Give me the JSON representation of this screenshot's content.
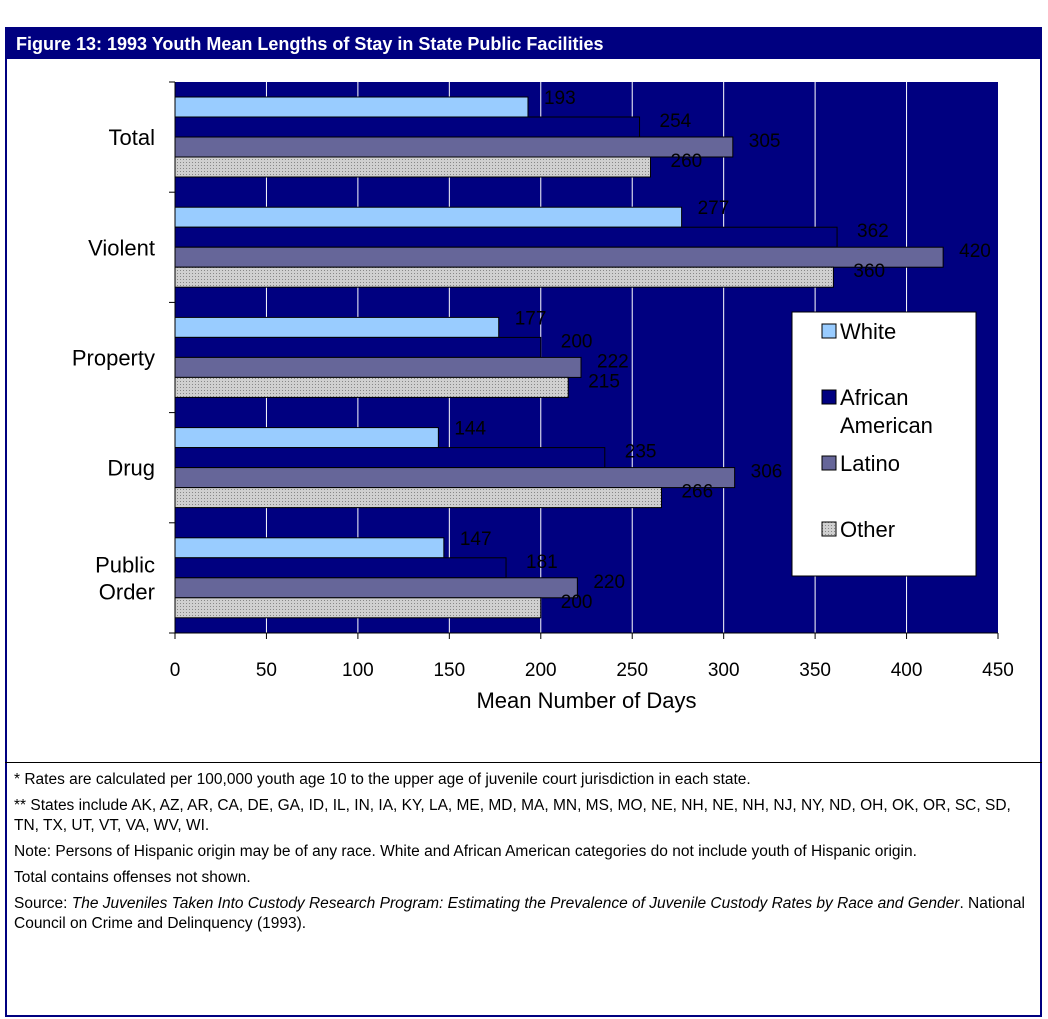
{
  "figure_title": "Figure 13:  1993 Youth Mean Lengths of Stay in State Public Facilities",
  "colors": {
    "header_bg": "#000080",
    "plot_bg": "#000080",
    "white_series": "#99ccff",
    "african_american_series": "#000080",
    "latino_series": "#666699",
    "other_series": "#c0c0c0"
  },
  "chart_data": {
    "type": "bar",
    "orientation": "horizontal",
    "categories": [
      "Total",
      "Violent",
      "Property",
      "Drug",
      "Public Order"
    ],
    "category_lines": [
      [
        "Total"
      ],
      [
        "Violent"
      ],
      [
        "Property"
      ],
      [
        "Drug"
      ],
      [
        "Public",
        "Order"
      ]
    ],
    "series": [
      {
        "name": "White",
        "legend_lines": [
          "White"
        ],
        "values": [
          193,
          277,
          177,
          144,
          147
        ]
      },
      {
        "name": "African American",
        "legend_lines": [
          "African",
          "American"
        ],
        "values": [
          254,
          362,
          200,
          235,
          181
        ]
      },
      {
        "name": "Latino",
        "legend_lines": [
          "Latino"
        ],
        "values": [
          305,
          420,
          222,
          306,
          220
        ]
      },
      {
        "name": "Other",
        "legend_lines": [
          "Other"
        ],
        "values": [
          260,
          360,
          215,
          266,
          200
        ]
      }
    ],
    "xlabel": "Mean Number of Days",
    "ylabel": "",
    "xlim": [
      0,
      450
    ],
    "x_ticks": [
      0,
      50,
      100,
      150,
      200,
      250,
      300,
      350,
      400,
      450
    ],
    "grid": "vertical",
    "legend_position": "right"
  },
  "notes": {
    "rate_note": "* Rates are calculated per 100,000 youth age 10 to the upper age of juvenile court jurisdiction in each state.",
    "states_note": "** States include AK, AZ, AR, CA, DE, GA, ID, IL, IN, IA, KY, LA, ME, MD, MA, MN, MS, MO, NE, NH, NE, NH, NJ, NY, ND, OH, OK, OR, SC, SD, TN, TX, UT, VT, VA, WV, WI.",
    "hispanic_note": "Note:  Persons of Hispanic origin may be of any race.  White and African American categories do not include youth of Hispanic origin.",
    "total_note": "Total contains offenses not shown.",
    "source_prefix": "Source:  ",
    "source_title": "The Juveniles Taken Into Custody Research Program: Estimating the Prevalence of Juvenile Custody Rates by Race and Gender",
    "source_suffix": ".  National Council on Crime and Delinquency (1993)."
  }
}
